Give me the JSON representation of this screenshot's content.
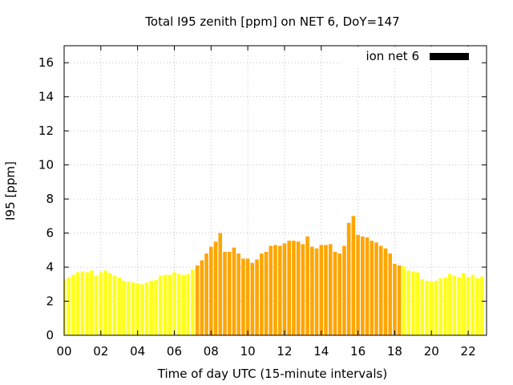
{
  "chart_data": {
    "type": "bar",
    "title": "Total I95 zenith [ppm] on NET 6, DoY=147",
    "xlabel": "Time of day UTC (15-minute intervals)",
    "ylabel": "I95 [ppm]",
    "xlim": [
      0,
      23
    ],
    "ylim": [
      0,
      17
    ],
    "x_ticks": [
      "00",
      "02",
      "04",
      "06",
      "08",
      "10",
      "12",
      "14",
      "16",
      "18",
      "20",
      "22"
    ],
    "y_ticks": [
      "0",
      "2",
      "4",
      "6",
      "8",
      "10",
      "12",
      "14",
      "16"
    ],
    "grid": true,
    "legend": {
      "label": "ion net 6",
      "color": "#000000",
      "placement": "top-right"
    },
    "colors": {
      "low": "#ffff1a",
      "high": "#ffa500"
    },
    "x_step_hours": 0.25,
    "values": [
      3.3,
      3.4,
      3.55,
      3.7,
      3.75,
      3.7,
      3.8,
      3.5,
      3.7,
      3.8,
      3.65,
      3.5,
      3.4,
      3.2,
      3.15,
      3.1,
      3.05,
      3.0,
      3.1,
      3.2,
      3.25,
      3.5,
      3.55,
      3.55,
      3.7,
      3.6,
      3.55,
      3.6,
      3.85,
      4.1,
      4.4,
      4.8,
      5.2,
      5.5,
      6.0,
      4.9,
      4.9,
      5.15,
      4.8,
      4.5,
      4.5,
      4.25,
      4.45,
      4.8,
      4.9,
      5.25,
      5.3,
      5.25,
      5.4,
      5.55,
      5.55,
      5.5,
      5.35,
      5.8,
      5.2,
      5.1,
      5.3,
      5.3,
      5.35,
      4.9,
      4.8,
      5.25,
      6.6,
      7.0,
      5.9,
      5.8,
      5.75,
      5.55,
      5.45,
      5.25,
      5.1,
      4.8,
      4.2,
      4.1,
      4.05,
      3.8,
      3.75,
      3.7,
      3.3,
      3.2,
      3.15,
      3.2,
      3.35,
      3.4,
      3.6,
      3.5,
      3.4,
      3.65,
      3.4,
      3.55,
      3.35,
      3.45
    ],
    "highlight_range": [
      29,
      73
    ]
  }
}
